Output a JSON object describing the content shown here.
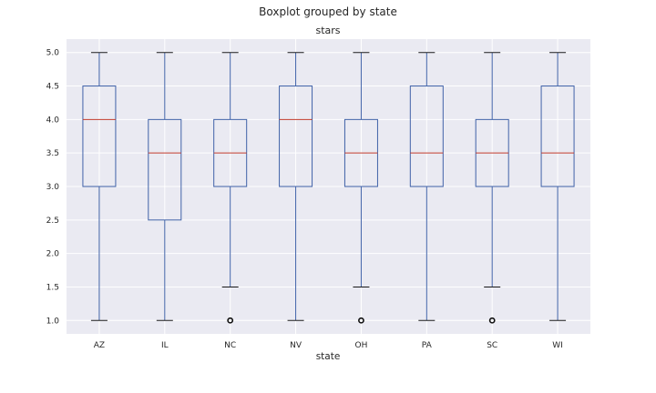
{
  "chart_data": {
    "type": "box",
    "suptitle": "Boxplot grouped by state",
    "title": "stars",
    "xlabel": "state",
    "ylabel": "",
    "ylim": [
      0.8,
      5.2
    ],
    "yticks": [
      1.0,
      1.5,
      2.0,
      2.5,
      3.0,
      3.5,
      4.0,
      4.5,
      5.0
    ],
    "ytick_labels": [
      "1.0",
      "1.5",
      "2.0",
      "2.5",
      "3.0",
      "3.5",
      "4.0",
      "4.5",
      "5.0"
    ],
    "grid": true,
    "categories": [
      "AZ",
      "IL",
      "NC",
      "NV",
      "OH",
      "PA",
      "SC",
      "WI"
    ],
    "boxes": [
      {
        "q1": 3.0,
        "median": 4.0,
        "q3": 4.5,
        "whislo": 1.0,
        "whishi": 5.0,
        "fliers": []
      },
      {
        "q1": 2.5,
        "median": 3.5,
        "q3": 4.0,
        "whislo": 1.0,
        "whishi": 5.0,
        "fliers": []
      },
      {
        "q1": 3.0,
        "median": 3.5,
        "q3": 4.0,
        "whislo": 1.5,
        "whishi": 5.0,
        "fliers": [
          1.0
        ]
      },
      {
        "q1": 3.0,
        "median": 4.0,
        "q3": 4.5,
        "whislo": 1.0,
        "whishi": 5.0,
        "fliers": []
      },
      {
        "q1": 3.0,
        "median": 3.5,
        "q3": 4.0,
        "whislo": 1.5,
        "whishi": 5.0,
        "fliers": [
          1.0
        ]
      },
      {
        "q1": 3.0,
        "median": 3.5,
        "q3": 4.5,
        "whislo": 1.0,
        "whishi": 5.0,
        "fliers": []
      },
      {
        "q1": 3.0,
        "median": 3.5,
        "q3": 4.0,
        "whislo": 1.5,
        "whishi": 5.0,
        "fliers": [
          1.0
        ]
      },
      {
        "q1": 3.0,
        "median": 3.5,
        "q3": 4.5,
        "whislo": 1.0,
        "whishi": 5.0,
        "fliers": []
      }
    ],
    "colors": {
      "plot_background": "#eaeaf2",
      "box": "#4062a8",
      "median": "#c0392b",
      "cap": "#1a1a1a",
      "grid": "#ffffff"
    }
  }
}
